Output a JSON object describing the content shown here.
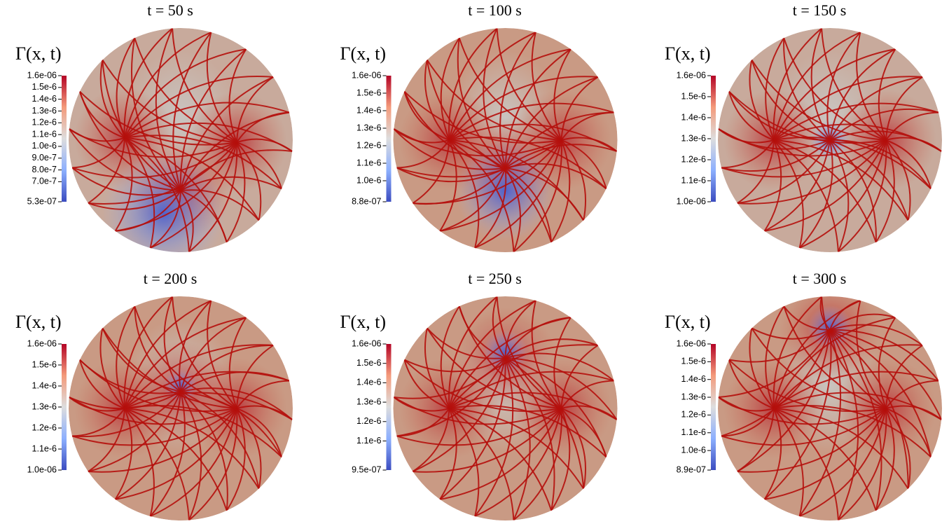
{
  "figure": {
    "panels": [
      {
        "title": "t = 50 s",
        "colorbar_label": "Γ(x, t)",
        "clim": [
          5.3e-07,
          1.6e-06
        ],
        "ticks": [
          {
            "value": 1.6e-06,
            "label": "1.6e-06"
          },
          {
            "value": 1.5e-06,
            "label": "1.5e-6"
          },
          {
            "value": 1.4e-06,
            "label": "1.4e-6"
          },
          {
            "value": 1.3e-06,
            "label": "1.3e-6"
          },
          {
            "value": 1.2e-06,
            "label": "1.2e-6"
          },
          {
            "value": 1.1e-06,
            "label": "1.1e-6"
          },
          {
            "value": 1e-06,
            "label": "1.0e-6"
          },
          {
            "value": 9e-07,
            "label": "9.0e-7"
          },
          {
            "value": 8e-07,
            "label": "8.0e-7"
          },
          {
            "value": 7e-07,
            "label": "7.0e-7"
          },
          {
            "value": 5.3e-07,
            "label": "5.3e-07"
          }
        ]
      },
      {
        "title": "t = 100 s",
        "colorbar_label": "Γ(x, t)",
        "clim": [
          8.8e-07,
          1.6e-06
        ],
        "ticks": [
          {
            "value": 1.6e-06,
            "label": "1.6e-06"
          },
          {
            "value": 1.5e-06,
            "label": "1.5e-6"
          },
          {
            "value": 1.4e-06,
            "label": "1.4e-6"
          },
          {
            "value": 1.3e-06,
            "label": "1.3e-6"
          },
          {
            "value": 1.2e-06,
            "label": "1.2e-6"
          },
          {
            "value": 1.1e-06,
            "label": "1.1e-6"
          },
          {
            "value": 1e-06,
            "label": "1.0e-6"
          },
          {
            "value": 8.8e-07,
            "label": "8.8e-07"
          }
        ]
      },
      {
        "title": "t = 150 s",
        "colorbar_label": "Γ(x, t)",
        "clim": [
          1e-06,
          1.6e-06
        ],
        "ticks": [
          {
            "value": 1.6e-06,
            "label": "1.6e-06"
          },
          {
            "value": 1.5e-06,
            "label": "1.5e-6"
          },
          {
            "value": 1.4e-06,
            "label": "1.4e-6"
          },
          {
            "value": 1.3e-06,
            "label": "1.3e-6"
          },
          {
            "value": 1.2e-06,
            "label": "1.2e-6"
          },
          {
            "value": 1.1e-06,
            "label": "1.1e-6"
          },
          {
            "value": 1e-06,
            "label": "1.0e-06"
          }
        ]
      },
      {
        "title": "t = 200 s",
        "colorbar_label": "Γ(x, t)",
        "clim": [
          1e-06,
          1.6e-06
        ],
        "ticks": [
          {
            "value": 1.6e-06,
            "label": "1.6e-06"
          },
          {
            "value": 1.5e-06,
            "label": "1.5e-6"
          },
          {
            "value": 1.4e-06,
            "label": "1.4e-6"
          },
          {
            "value": 1.3e-06,
            "label": "1.3e-6"
          },
          {
            "value": 1.2e-06,
            "label": "1.2e-6"
          },
          {
            "value": 1.1e-06,
            "label": "1.1e-6"
          },
          {
            "value": 1e-06,
            "label": "1.0e-06"
          }
        ]
      },
      {
        "title": "t = 250 s",
        "colorbar_label": "Γ(x, t)",
        "clim": [
          9.5e-07,
          1.6e-06
        ],
        "ticks": [
          {
            "value": 1.6e-06,
            "label": "1.6e-06"
          },
          {
            "value": 1.5e-06,
            "label": "1.5e-6"
          },
          {
            "value": 1.4e-06,
            "label": "1.4e-6"
          },
          {
            "value": 1.3e-06,
            "label": "1.3e-6"
          },
          {
            "value": 1.2e-06,
            "label": "1.2e-6"
          },
          {
            "value": 1.1e-06,
            "label": "1.1e-6"
          },
          {
            "value": 9.5e-07,
            "label": "9.5e-07"
          }
        ]
      },
      {
        "title": "t = 300 s",
        "colorbar_label": "Γ(x, t)",
        "clim": [
          8.9e-07,
          1.6e-06
        ],
        "ticks": [
          {
            "value": 1.6e-06,
            "label": "1.6e-06"
          },
          {
            "value": 1.5e-06,
            "label": "1.5e-6"
          },
          {
            "value": 1.4e-06,
            "label": "1.4e-6"
          },
          {
            "value": 1.3e-06,
            "label": "1.3e-6"
          },
          {
            "value": 1.2e-06,
            "label": "1.2e-6"
          },
          {
            "value": 1.1e-06,
            "label": "1.1e-6"
          },
          {
            "value": 1e-06,
            "label": "1.0e-6"
          },
          {
            "value": 8.9e-07,
            "label": "8.9e-07"
          }
        ]
      }
    ]
  }
}
